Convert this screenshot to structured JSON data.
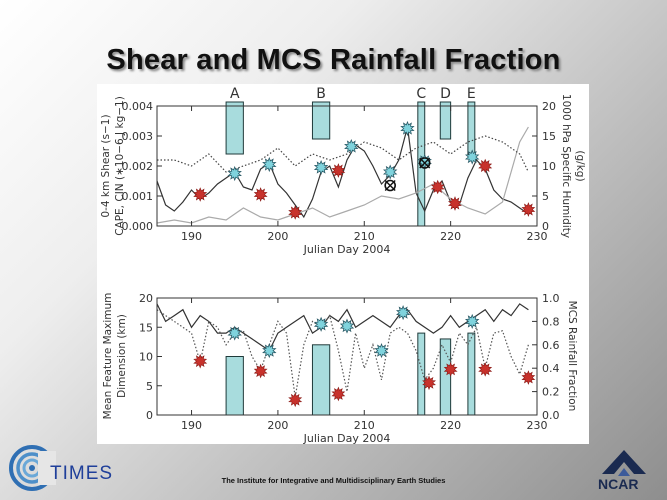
{
  "slide": {
    "title": "Shear and MCS Rainfall Fraction",
    "footer": "The Institute for Integrative and Multidisciplinary Earth Studies",
    "left_logo_text": "TIMES",
    "right_logo_text": "NCAR"
  },
  "chart_data": [
    {
      "type": "line",
      "panel": "top",
      "xlabel": "Julian Day 2004",
      "ylabel_left": "0-4 km Shear (s−1)\nCAPE, CIN (∗10−6 J kg−1)",
      "ylabel_right": "1000 hPa Specific Humidity\n(g/kg)",
      "xlim": [
        186,
        230
      ],
      "ylim_left": [
        0,
        0.004
      ],
      "ylim_right": [
        0,
        20
      ],
      "x_ticks": [
        190,
        200,
        210,
        220,
        230
      ],
      "x_tick_labels": [
        "190",
        "200",
        "210",
        "220",
        "230"
      ],
      "y_left_ticks": [
        0,
        0.001,
        0.002,
        0.003,
        0.004
      ],
      "y_left_tick_labels": [
        "0.000",
        "0.001",
        "0.002",
        "0.003",
        "0.004"
      ],
      "y_right_ticks": [
        0,
        5,
        10,
        15,
        20
      ],
      "y_right_tick_labels": [
        "0",
        "5",
        "10",
        "15",
        "20"
      ],
      "events": [
        {
          "label": "A",
          "x0": 194,
          "x1": 196,
          "y_low": 0.0024
        },
        {
          "label": "B",
          "x0": 204,
          "x1": 206,
          "y_low": 0.0029
        },
        {
          "label": "C",
          "x0": 216.2,
          "x1": 217,
          "y_low": 0.0
        },
        {
          "label": "D",
          "x0": 218.8,
          "x1": 220,
          "y_low": 0.0029
        },
        {
          "label": "E",
          "x0": 222,
          "x1": 222.8,
          "y_low": 0.0024
        }
      ],
      "series": [
        {
          "name": "0-4 km Shear",
          "style": "solid",
          "color": "#333333",
          "axis": "left",
          "x": [
            186,
            187,
            188,
            189,
            190,
            191,
            192,
            193,
            194,
            195,
            196,
            197,
            198,
            199,
            200,
            201,
            202,
            203,
            204,
            205,
            206,
            207,
            208,
            209,
            210,
            211,
            212,
            213,
            214,
            215,
            216,
            217,
            218,
            219,
            220,
            221,
            222,
            223,
            224,
            225,
            226,
            227,
            228,
            229
          ],
          "y": [
            0.0015,
            0.0007,
            0.0005,
            0.0008,
            0.0012,
            0.0009,
            0.0011,
            0.0014,
            0.0016,
            0.0018,
            0.0013,
            0.0012,
            0.0019,
            0.0021,
            0.0014,
            0.0011,
            0.0007,
            0.0003,
            0.0009,
            0.0018,
            0.002,
            0.0013,
            0.0022,
            0.0027,
            0.0025,
            0.002,
            0.0014,
            0.0017,
            0.0022,
            0.0033,
            0.0011,
            0.0005,
            0.0012,
            0.0015,
            0.0008,
            0.0007,
            0.0016,
            0.0022,
            0.0019,
            0.0012,
            0.0009,
            0.0008,
            0.0006,
            0.0004
          ]
        },
        {
          "name": "CAPE",
          "style": "solid",
          "color": "#aaaaaa",
          "axis": "left",
          "x": [
            186,
            188,
            190,
            192,
            194,
            196,
            198,
            200,
            202,
            204,
            206,
            208,
            210,
            212,
            214,
            216,
            218,
            220,
            222,
            224,
            226,
            228,
            229
          ],
          "y": [
            0.0001,
            0.0002,
            0.0001,
            0.0003,
            0.0002,
            0.0006,
            0.0003,
            0.0002,
            0.0004,
            0.0006,
            0.0003,
            0.0005,
            0.0007,
            0.001,
            0.0009,
            0.0011,
            0.0014,
            0.0009,
            0.0006,
            0.0004,
            0.0008,
            0.0028,
            0.0033
          ]
        },
        {
          "name": "1000 hPa Specific Humidity",
          "style": "dotted",
          "color": "#444444",
          "axis": "right",
          "x": [
            186,
            188,
            190,
            192,
            194,
            196,
            198,
            200,
            202,
            204,
            206,
            208,
            210,
            212,
            214,
            216,
            218,
            220,
            222,
            224,
            226,
            228,
            229
          ],
          "y": [
            11,
            11,
            10,
            12,
            9,
            10,
            11,
            13,
            10,
            12,
            11,
            12,
            14,
            13,
            11,
            13,
            14,
            12,
            14,
            15,
            14,
            12,
            9
          ]
        }
      ],
      "markers": [
        {
          "kind": "star-cyan",
          "points": [
            [
              195,
              0.00175
            ],
            [
              199,
              0.00205
            ],
            [
              205,
              0.00195
            ],
            [
              208.5,
              0.00265
            ],
            [
              213,
              0.0018
            ],
            [
              215,
              0.00325
            ],
            [
              217,
              0.00215
            ],
            [
              222.5,
              0.0023
            ]
          ]
        },
        {
          "kind": "star-red",
          "points": [
            [
              191,
              0.00105
            ],
            [
              198,
              0.00105
            ],
            [
              202,
              0.00045
            ],
            [
              207,
              0.00185
            ],
            [
              218.5,
              0.0013
            ],
            [
              220.5,
              0.00075
            ],
            [
              224,
              0.002
            ],
            [
              229,
              0.00055
            ]
          ]
        },
        {
          "kind": "circle-x",
          "points": [
            [
              213,
              0.00135
            ],
            [
              217,
              0.0021
            ]
          ]
        }
      ]
    },
    {
      "type": "line",
      "panel": "bottom",
      "xlabel": "Julian Day 2004",
      "ylabel_left": "Mean Feature Maximum\nDimension (km)",
      "ylabel_right": "MCS Rainfall Fraction",
      "xlim": [
        186,
        230
      ],
      "ylim_left": [
        0,
        20
      ],
      "ylim_right": [
        0,
        1.0
      ],
      "x_ticks": [
        190,
        200,
        210,
        220,
        230
      ],
      "x_tick_labels": [
        "190",
        "200",
        "210",
        "220",
        "230"
      ],
      "y_left_ticks": [
        0,
        5,
        10,
        15,
        20
      ],
      "y_left_tick_labels": [
        "0",
        "5",
        "10",
        "15",
        "20"
      ],
      "y_right_ticks": [
        0,
        0.2,
        0.4,
        0.6,
        0.8,
        1.0
      ],
      "y_right_tick_labels": [
        "0.0",
        "0.2",
        "0.4",
        "0.6",
        "0.8",
        "1.0"
      ],
      "bars": [
        {
          "x0": 194,
          "x1": 196,
          "y": 10
        },
        {
          "x0": 204,
          "x1": 206,
          "y": 12
        },
        {
          "x0": 216.2,
          "x1": 217,
          "y": 14
        },
        {
          "x0": 218.8,
          "x1": 220,
          "y": 13
        },
        {
          "x0": 222,
          "x1": 222.8,
          "y": 14
        }
      ],
      "series": [
        {
          "name": "Mean Feature Maximum Dimension",
          "style": "solid",
          "color": "#333333",
          "axis": "left",
          "x": [
            186,
            187,
            188,
            189,
            190,
            191,
            192,
            193,
            194,
            195,
            196,
            197,
            198,
            199,
            200,
            201,
            202,
            203,
            204,
            205,
            206,
            207,
            208,
            209,
            210,
            211,
            212,
            213,
            214,
            215,
            216,
            217,
            218,
            219,
            220,
            221,
            222,
            223,
            224,
            225,
            226,
            227,
            228,
            229
          ],
          "y": [
            19,
            16,
            17,
            18,
            15,
            17,
            16,
            14,
            14,
            15,
            14,
            13,
            12,
            11,
            14,
            15,
            16,
            17,
            14,
            15,
            17,
            16,
            18,
            15,
            16,
            17,
            16,
            15,
            17,
            18,
            16,
            15,
            14,
            15,
            17,
            15,
            16,
            17,
            18,
            16,
            18,
            17,
            19,
            18
          ]
        },
        {
          "name": "MCS Rainfall Fraction",
          "style": "dotted",
          "color": "#555555",
          "axis": "right",
          "x": [
            186,
            187,
            188,
            189,
            190,
            191,
            192,
            193,
            194,
            195,
            196,
            197,
            198,
            199,
            200,
            201,
            202,
            203,
            204,
            205,
            206,
            207,
            208,
            209,
            210,
            211,
            212,
            213,
            214,
            215,
            216,
            217,
            218,
            219,
            220,
            221,
            222,
            223,
            224,
            225,
            226,
            227,
            228,
            229
          ],
          "y": [
            0.9,
            0.85,
            0.8,
            0.75,
            0.7,
            0.45,
            0.8,
            0.75,
            0.6,
            0.7,
            0.72,
            0.5,
            0.38,
            0.6,
            0.8,
            0.7,
            0.15,
            0.6,
            0.8,
            0.75,
            0.85,
            0.55,
            0.2,
            0.7,
            0.4,
            0.6,
            0.3,
            0.7,
            0.75,
            0.7,
            0.55,
            0.3,
            0.4,
            0.6,
            0.45,
            0.7,
            0.6,
            0.75,
            0.4,
            0.7,
            0.72,
            0.5,
            0.35,
            0.6
          ]
        }
      ],
      "markers": [
        {
          "kind": "star-cyan",
          "points": [
            [
              195,
              14
            ],
            [
              199,
              11
            ],
            [
              205,
              15.5
            ],
            [
              208,
              15.2
            ],
            [
              212,
              11
            ],
            [
              214.5,
              17.5
            ],
            [
              222.5,
              16
            ]
          ]
        },
        {
          "kind": "star-red",
          "points": [
            [
              191,
              9.2
            ],
            [
              198,
              7.5
            ],
            [
              202,
              2.6
            ],
            [
              207,
              3.6
            ],
            [
              217.5,
              5.5
            ],
            [
              220,
              7.8
            ],
            [
              224,
              7.8
            ],
            [
              229,
              6.4
            ]
          ]
        }
      ]
    }
  ]
}
